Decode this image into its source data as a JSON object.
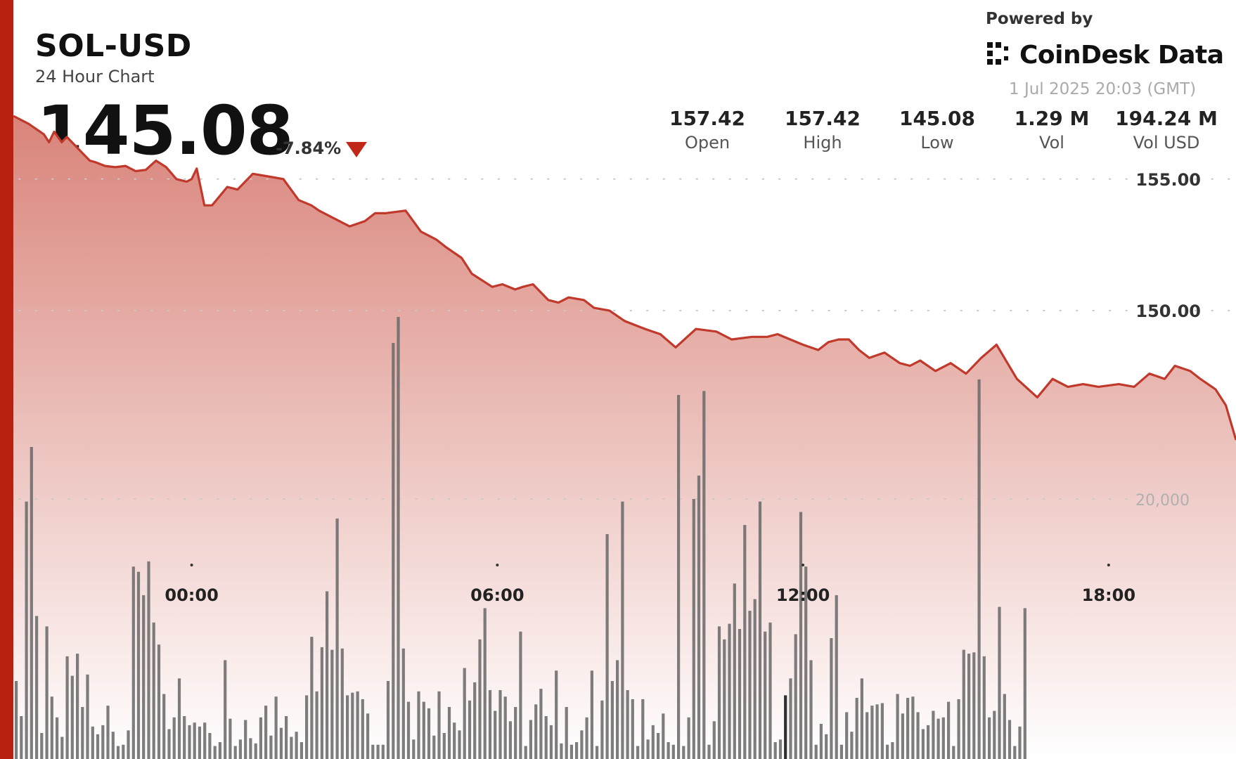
{
  "header": {
    "symbol": "SOL-USD",
    "subtitle": "24 Hour Chart",
    "price": "145.08",
    "change": "-7.84%",
    "powered_by": "Powered by",
    "brand": "CoinDesk Data",
    "timestamp": "1 Jul 2025 20:03 (GMT)"
  },
  "stats": [
    {
      "value": "157.42",
      "label": "Open"
    },
    {
      "value": "157.42",
      "label": "High"
    },
    {
      "value": "145.08",
      "label": "Low"
    },
    {
      "value": "1.29 M",
      "label": "Vol"
    },
    {
      "value": "194.24 M",
      "label": "Vol USD"
    }
  ],
  "colors": {
    "accent": "#b8210f",
    "line": "#c0392b",
    "area_top": "#d9847a",
    "volume_bar": "#6b6b6b",
    "highlight_bar": "#2f2f2f"
  },
  "chart_data": {
    "type": "line",
    "title": "",
    "xlabel": "",
    "ylabel": "",
    "ylim": [
      142.3,
      157.8
    ],
    "y_ticks": [
      "155.00",
      "150.00"
    ],
    "y_tick_values": [
      155,
      150
    ],
    "x_ticks": [
      "00:00",
      "06:00",
      "12:00",
      "18:00"
    ],
    "x_tick_hours": [
      3.5,
      9.5,
      15.5,
      21.5
    ],
    "x_range_hours": [
      0,
      24
    ],
    "grid": true,
    "series": [
      {
        "kind": "price",
        "x": [
          0,
          0.3,
          0.6,
          0.7,
          0.8,
          0.95,
          1.05,
          1.3,
          1.5,
          1.6,
          1.8,
          2.0,
          2.2,
          2.4,
          2.6,
          2.8,
          3.0,
          3.2,
          3.4,
          3.5,
          3.6,
          3.75,
          3.9,
          4.2,
          4.4,
          4.7,
          5.0,
          5.3,
          5.6,
          5.85,
          6.0,
          6.3,
          6.6,
          6.9,
          7.1,
          7.3,
          7.7,
          8.0,
          8.3,
          8.5,
          8.8,
          9.0,
          9.4,
          9.6,
          9.85,
          10.0,
          10.2,
          10.5,
          10.7,
          10.9,
          11.2,
          11.4,
          11.7,
          12.0,
          12.4,
          12.7,
          13.0,
          13.4,
          13.8,
          14.1,
          14.5,
          14.8,
          15.0,
          15.5,
          15.8,
          16.0,
          16.2,
          16.4,
          16.6,
          16.8,
          17.1,
          17.4,
          17.6,
          17.8,
          18.1,
          18.4,
          18.7,
          19.0,
          19.3,
          19.7,
          20.1,
          20.4,
          20.7,
          21.0,
          21.3,
          21.7,
          22.0,
          22.3,
          22.6,
          22.8,
          23.1,
          23.3,
          23.6,
          23.8,
          24.0
        ],
        "y": [
          157.4,
          157.1,
          156.7,
          156.4,
          156.8,
          156.4,
          156.6,
          156.1,
          155.7,
          155.65,
          155.5,
          155.45,
          155.5,
          155.3,
          155.35,
          155.7,
          155.45,
          155.0,
          154.9,
          155.0,
          155.4,
          154.0,
          154.0,
          154.7,
          154.6,
          155.2,
          155.1,
          155.0,
          154.2,
          154.0,
          153.8,
          153.5,
          153.2,
          153.4,
          153.7,
          153.7,
          153.8,
          153.0,
          152.7,
          152.4,
          152.0,
          151.4,
          150.9,
          151.0,
          150.8,
          150.9,
          151.0,
          150.4,
          150.3,
          150.5,
          150.4,
          150.1,
          150.0,
          149.6,
          149.3,
          149.1,
          148.6,
          149.3,
          149.2,
          148.9,
          149.0,
          149.0,
          149.1,
          148.7,
          148.5,
          148.8,
          148.9,
          148.9,
          148.5,
          148.2,
          148.4,
          148.0,
          147.9,
          148.1,
          147.7,
          148.0,
          147.6,
          148.2,
          148.7,
          147.4,
          146.7,
          147.4,
          147.1,
          147.2,
          147.1,
          147.2,
          147.1,
          147.6,
          147.4,
          147.9,
          147.7,
          147.4,
          147.0,
          146.4,
          145.08
        ]
      },
      {
        "kind": "volume",
        "x_start_hour": 0,
        "bar_width_hours": 0.1,
        "ylim": [
          0,
          40000
        ],
        "y_tick": "20,000",
        "y_tick_value": 20000,
        "highlight_index": 151,
        "values": [
          6000,
          3300,
          19800,
          24000,
          11000,
          2000,
          10200,
          4800,
          3200,
          1700,
          7900,
          6400,
          8100,
          4000,
          6500,
          2500,
          1900,
          2600,
          4100,
          2100,
          1000,
          1100,
          2200,
          14800,
          14400,
          12600,
          15200,
          10500,
          8800,
          5000,
          2300,
          3200,
          6200,
          3300,
          2600,
          2800,
          2500,
          2800,
          2000,
          1000,
          1300,
          7600,
          3100,
          1000,
          1500,
          3000,
          1600,
          1200,
          3200,
          4100,
          1800,
          4800,
          2400,
          3300,
          1700,
          2100,
          1300,
          4900,
          9400,
          5200,
          8600,
          12900,
          8400,
          18500,
          8500,
          4900,
          5100,
          5200,
          4600,
          3500,
          1100,
          1100,
          1100,
          6000,
          32000,
          34000,
          8500,
          4400,
          1500,
          5200,
          4400,
          3900,
          1800,
          5200,
          2000,
          4000,
          2800,
          2200,
          7000,
          4500,
          5900,
          9200,
          11600,
          5300,
          3700,
          5300,
          4800,
          2900,
          4000,
          9800,
          1000,
          3000,
          4200,
          5400,
          3300,
          2600,
          6800,
          1200,
          4000,
          1100,
          1300,
          2200,
          3200,
          6800,
          1000,
          4500,
          17300,
          6000,
          7600,
          19800,
          5300,
          4600,
          1000,
          4600,
          1500,
          2600,
          2000,
          3500,
          1300,
          1100,
          28000,
          1000,
          3200,
          20000,
          21800,
          28300,
          1100,
          2900,
          10200,
          9200,
          10400,
          13500,
          10000,
          18000,
          11400,
          12300,
          19800,
          9800,
          10500,
          1300,
          1500,
          4900,
          6200,
          9600,
          19000,
          14800,
          7600,
          1100,
          2700,
          1900,
          9300,
          12600,
          1100,
          3600,
          2100,
          4700,
          6200,
          3600,
          4100,
          4200,
          4300,
          1100,
          1300,
          5000,
          3500,
          4700,
          4800,
          3600,
          2300,
          2600,
          3700,
          3100,
          3200,
          4400,
          1000,
          4600,
          8400,
          8100,
          8200,
          29200,
          7900,
          3200,
          3700,
          11700,
          5000,
          3000,
          1000,
          2500,
          11600
        ]
      }
    ]
  }
}
